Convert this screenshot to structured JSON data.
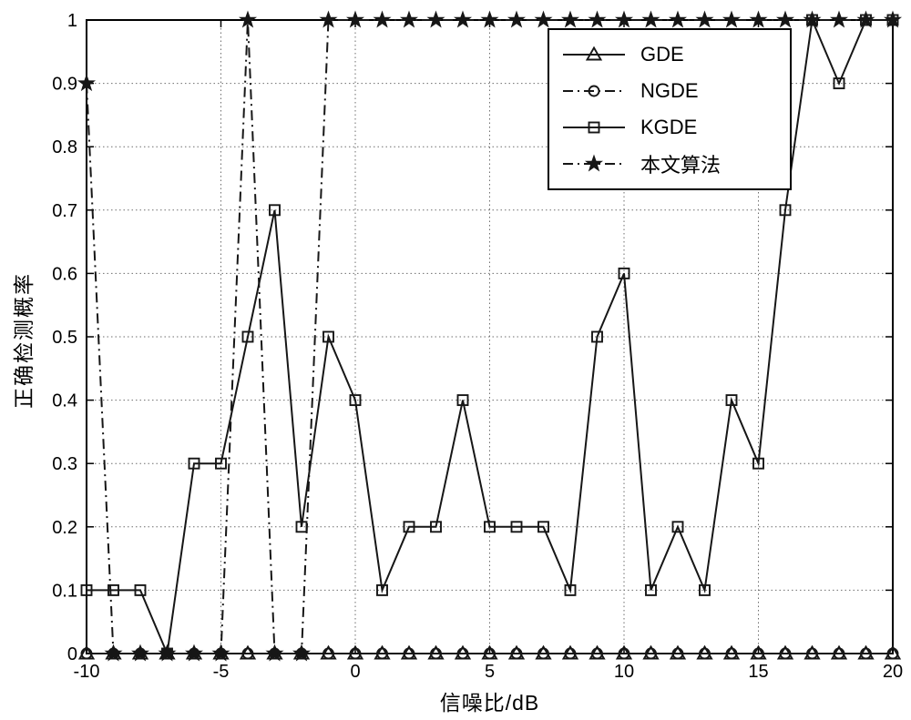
{
  "figure": {
    "background": "#ffffff",
    "axis_color": "#000000",
    "grid_color": "#6e6e6e",
    "series_color": "#161616"
  },
  "chart_data": {
    "type": "line",
    "title": "",
    "xlabel": "信噪比/dB",
    "ylabel": "正确检测概率",
    "xlim": [
      -10,
      20
    ],
    "ylim": [
      0,
      1
    ],
    "grid": true,
    "legend_position": "upper-right-inside",
    "xticks": [
      -10,
      -5,
      0,
      5,
      10,
      15,
      20
    ],
    "xtick_labels": [
      "-10",
      "-5",
      "0",
      "5",
      "10",
      "15",
      "20"
    ],
    "yticks": [
      0,
      0.1,
      0.2,
      0.3,
      0.4,
      0.5,
      0.6,
      0.7,
      0.8,
      0.9,
      1
    ],
    "ytick_labels": [
      "0",
      "0.1",
      "0.2",
      "0.3",
      "0.4",
      "0.5",
      "0.6",
      "0.7",
      "0.8",
      "0.9",
      "1"
    ],
    "x": [
      -10,
      -9,
      -8,
      -7,
      -6,
      -5,
      -4,
      -3,
      -2,
      -1,
      0,
      1,
      2,
      3,
      4,
      5,
      6,
      7,
      8,
      9,
      10,
      11,
      12,
      13,
      14,
      15,
      16,
      17,
      18,
      19,
      20
    ],
    "series": [
      {
        "id": "gde",
        "name": "GDE",
        "marker": "triangle",
        "line": "solid",
        "color": "#161616",
        "values": [
          0,
          0,
          0,
          0,
          0,
          0,
          0,
          0,
          0,
          0,
          0,
          0,
          0,
          0,
          0,
          0,
          0,
          0,
          0,
          0,
          0,
          0,
          0,
          0,
          0,
          0,
          0,
          0,
          0,
          0,
          0
        ]
      },
      {
        "id": "ngde",
        "name": "NGDE",
        "marker": "circle",
        "line": "dashdot",
        "color": "#161616",
        "values": [
          0,
          0,
          0,
          0,
          0,
          0,
          0,
          0,
          0,
          0,
          0,
          0,
          0,
          0,
          0,
          0,
          0,
          0,
          0,
          0,
          0,
          0,
          0,
          0,
          0,
          0,
          0,
          0,
          0,
          0,
          0
        ]
      },
      {
        "id": "kgde",
        "name": "KGDE",
        "marker": "square",
        "line": "solid",
        "color": "#161616",
        "values": [
          0.1,
          0.1,
          0.1,
          0,
          0.3,
          0.3,
          0.5,
          0.7,
          0.2,
          0.5,
          0.4,
          0.1,
          0.2,
          0.2,
          0.4,
          0.2,
          0.2,
          0.2,
          0.1,
          0.5,
          0.6,
          0.1,
          0.2,
          0.1,
          0.4,
          0.3,
          0.7,
          1,
          0.9,
          1,
          1
        ]
      },
      {
        "id": "proposed",
        "name": "本文算法",
        "marker": "star",
        "line": "dashdot",
        "color": "#161616",
        "values": [
          0.9,
          0,
          0,
          0,
          0,
          0,
          1,
          0,
          0,
          1,
          1,
          1,
          1,
          1,
          1,
          1,
          1,
          1,
          1,
          1,
          1,
          1,
          1,
          1,
          1,
          1,
          1,
          1,
          1,
          1,
          1
        ]
      }
    ]
  }
}
